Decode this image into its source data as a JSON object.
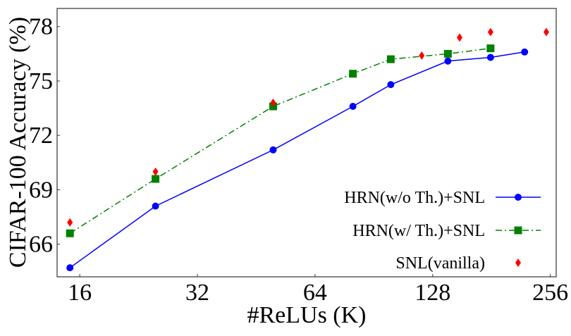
{
  "chart_data": {
    "type": "line",
    "title": "",
    "xlabel": "#ReLUs (K)",
    "ylabel": "CIFAR-100 Accuracy (%)",
    "xscale": "log2",
    "xlim": [
      14.0,
      265
    ],
    "ylim": [
      64.2,
      79.0
    ],
    "xticks": [
      16,
      32,
      64,
      128,
      256
    ],
    "yticks": [
      66,
      69,
      72,
      75,
      78
    ],
    "grid": false,
    "legend_position": "right",
    "series": [
      {
        "name": "HRN(w/o Th.)+SNL",
        "color": "#0000ff",
        "marker": "circle",
        "linestyle": "solid",
        "x": [
          15.1,
          25,
          50,
          80,
          100,
          140,
          180,
          220
        ],
        "y": [
          64.7,
          68.1,
          71.2,
          73.6,
          74.8,
          76.1,
          76.3,
          76.6
        ]
      },
      {
        "name": "HRN(w/ Th.)+SNL",
        "color": "#008000",
        "marker": "square",
        "linestyle": "dashdot",
        "x": [
          15.1,
          25,
          50,
          80,
          100,
          140,
          180
        ],
        "y": [
          66.6,
          69.6,
          73.6,
          75.4,
          76.2,
          76.5,
          76.8
        ]
      },
      {
        "name": "SNL(vanilla)",
        "color": "#ff0000",
        "marker": "diamond",
        "linestyle": "none",
        "x": [
          15.1,
          25,
          50,
          120,
          150,
          180,
          250
        ],
        "y": [
          67.2,
          70.0,
          73.8,
          76.4,
          77.4,
          77.7,
          77.7
        ]
      }
    ]
  }
}
